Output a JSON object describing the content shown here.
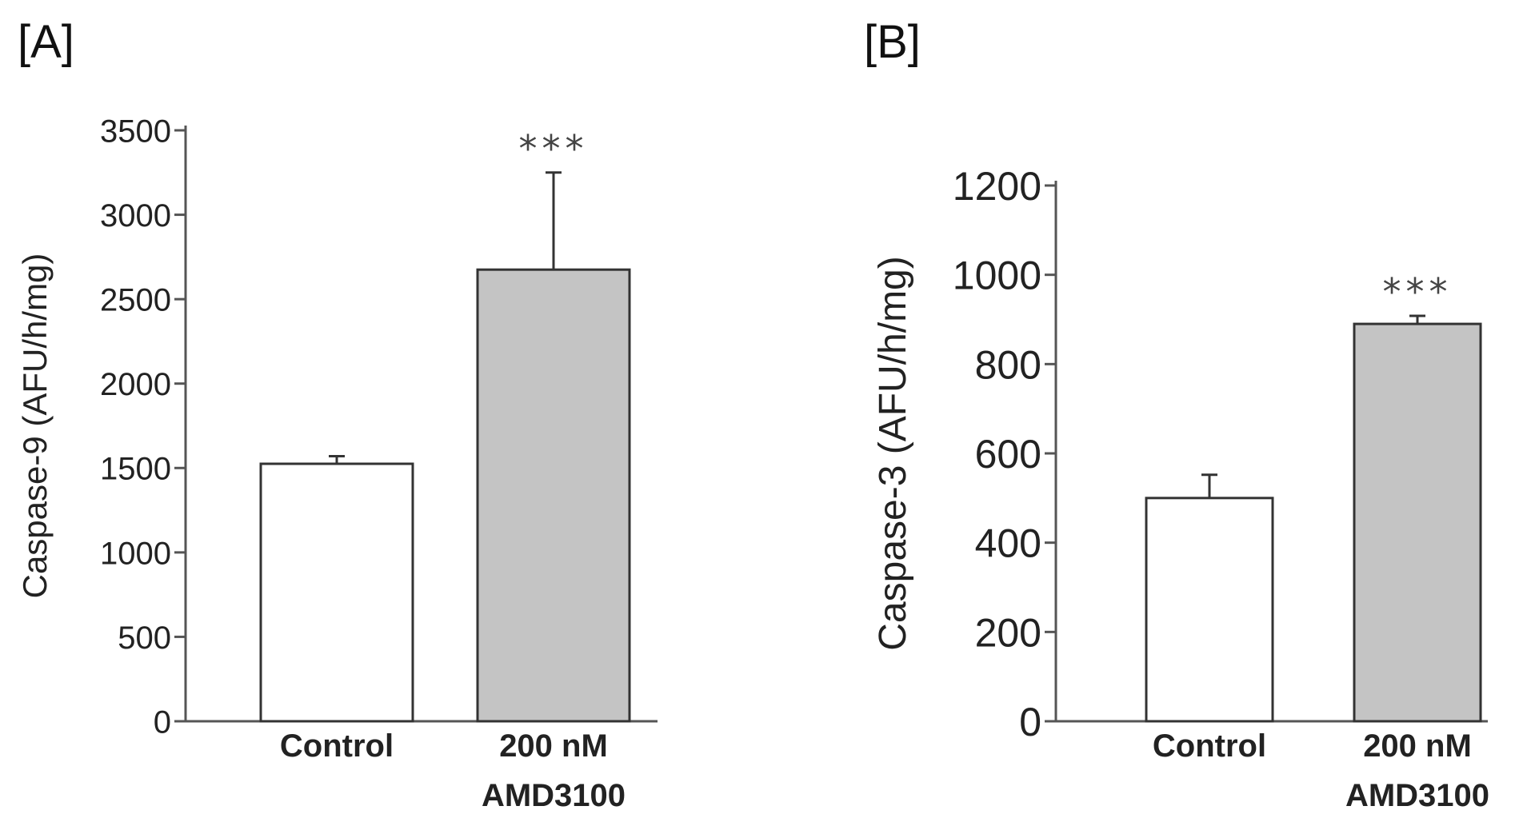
{
  "chart_data": [
    {
      "panel": "[A]",
      "type": "bar",
      "categories": [
        [
          "Control"
        ],
        [
          "200 nM",
          "AMD3100"
        ]
      ],
      "values": [
        1525,
        2675
      ],
      "errors": [
        45,
        575
      ],
      "bar_colors": [
        "#ffffff",
        "#c4c4c4"
      ],
      "significance": [
        "",
        "***"
      ],
      "ylabel": "Caspase-9 (AFU/h/mg)",
      "yticks": [
        0,
        500,
        1000,
        1500,
        2000,
        2500,
        3000,
        3500
      ],
      "ylim": [
        0,
        3500
      ]
    },
    {
      "panel": "[B]",
      "type": "bar",
      "categories": [
        [
          "Control"
        ],
        [
          "200 nM",
          "AMD3100"
        ]
      ],
      "values": [
        500,
        890
      ],
      "errors": [
        52,
        18
      ],
      "bar_colors": [
        "#ffffff",
        "#c4c4c4"
      ],
      "significance": [
        "",
        "***"
      ],
      "ylabel": "Caspase-3 (AFU/h/mg)",
      "yticks": [
        0,
        200,
        400,
        600,
        800,
        1000,
        1200
      ],
      "ylim": [
        0,
        1200
      ]
    }
  ]
}
